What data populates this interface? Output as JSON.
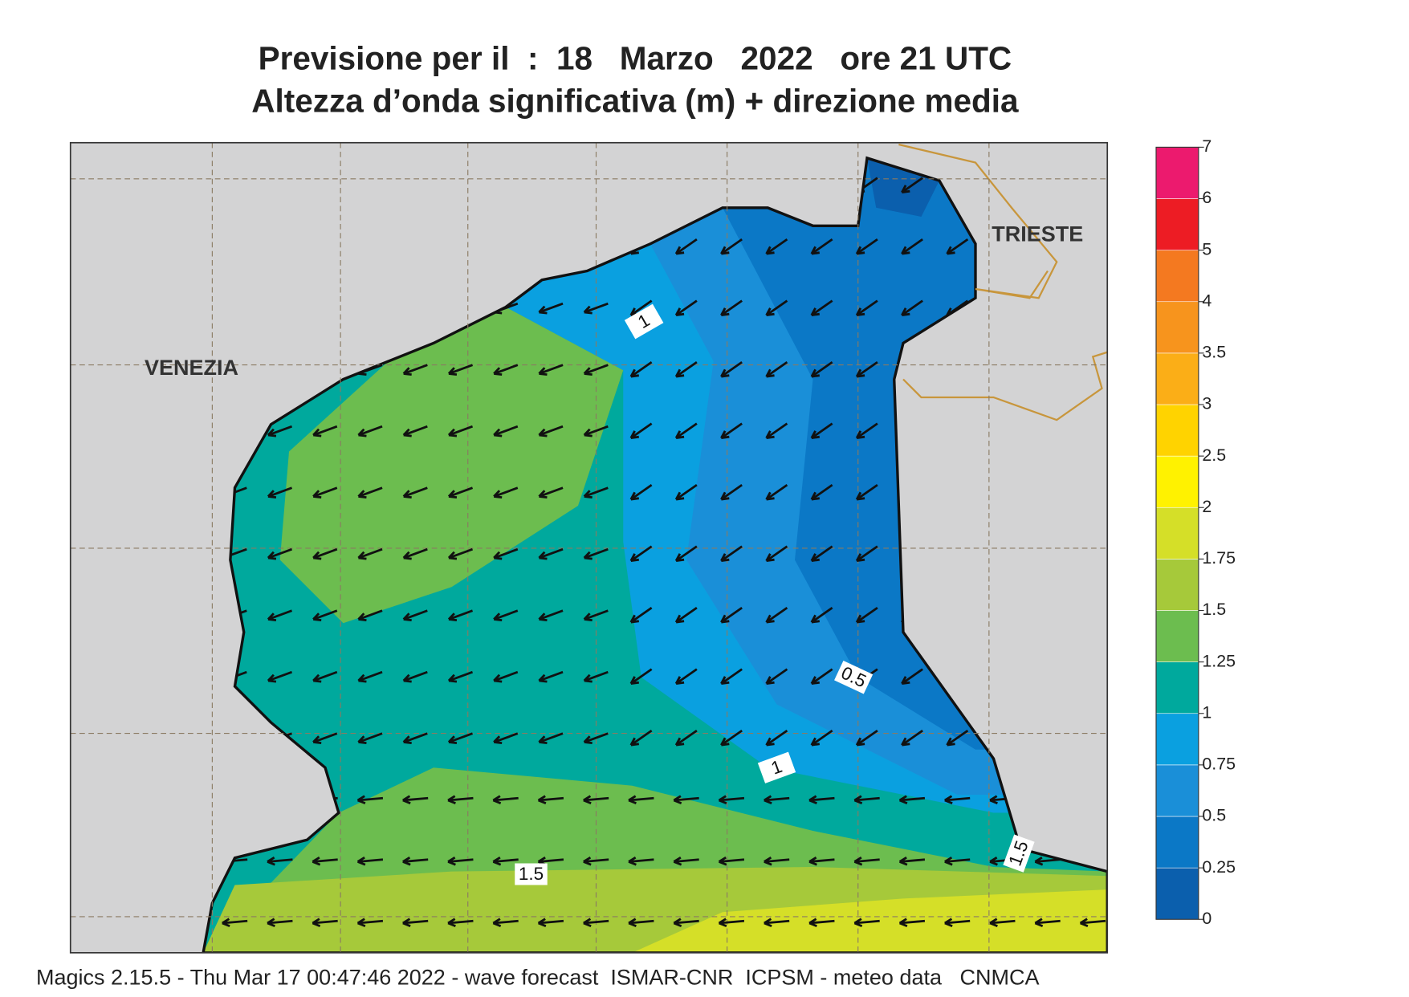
{
  "header": {
    "title": "Previsione per il  :  18   Marzo   2022   ore 21 UTC",
    "subtitle": "Altezza d’onda significativa (m) + direzione media"
  },
  "map": {
    "places": [
      "VENEZIA",
      "TRIESTE"
    ],
    "contour_labels": [
      1,
      1,
      0.5,
      1.5,
      1.5
    ]
  },
  "legend": {
    "ticks": [
      0,
      0.25,
      0.5,
      0.75,
      1,
      1.25,
      1.5,
      1.75,
      2,
      2.5,
      3,
      3.5,
      4,
      5,
      6,
      7
    ],
    "colors": [
      "#0b5fad",
      "#0b78c6",
      "#1a8fd8",
      "#0aa0e0",
      "#00a99d",
      "#6cbd4f",
      "#a6c93a",
      "#d5df28",
      "#fff200",
      "#ffd300",
      "#fbae17",
      "#f7941d",
      "#f47920",
      "#ed1c24",
      "#ec1a6e"
    ]
  },
  "footer": "Magics 2.15.5 - Thu Mar 17 00:47:46 2022 - wave forecast  ISMAR-CNR  ICPSM - meteo data   CNMCA"
}
